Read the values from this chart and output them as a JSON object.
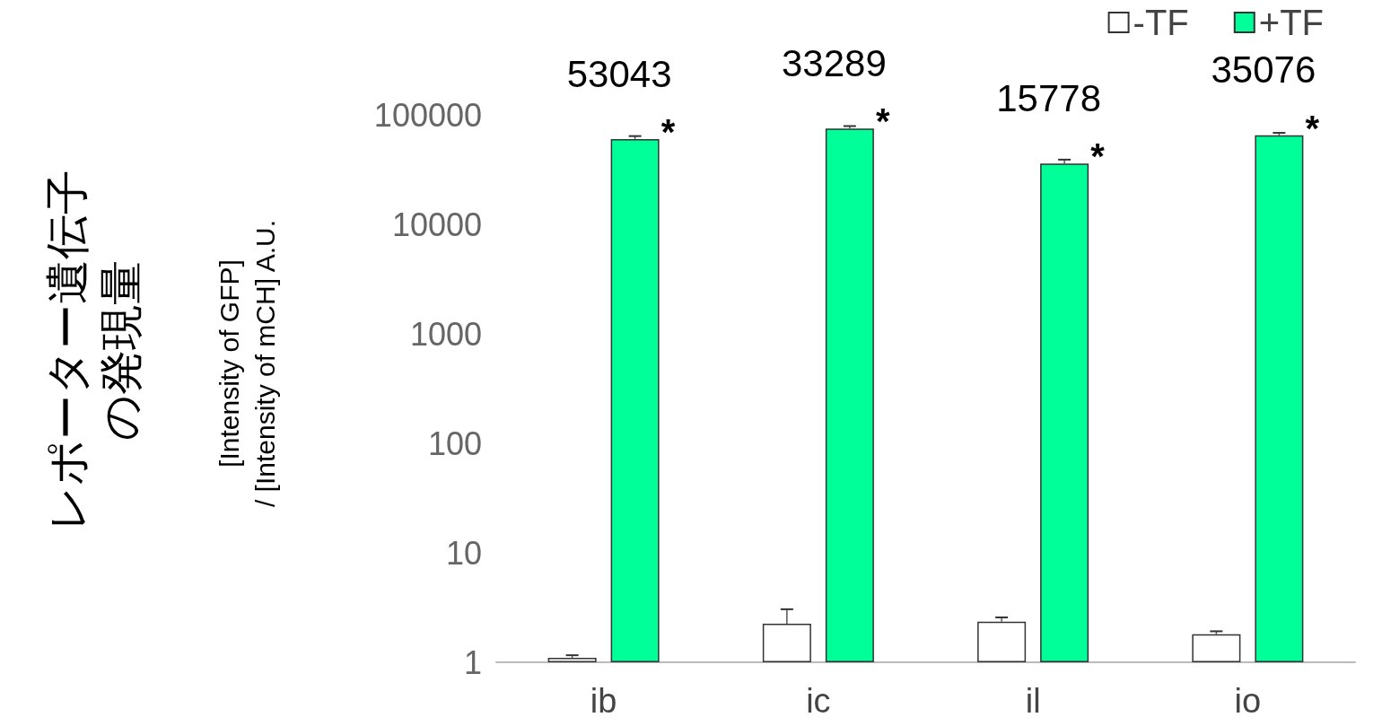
{
  "chart_data": {
    "type": "bar",
    "title": "レポーター遺伝子の発現量",
    "ylabel": "[Intensity of GFP]\n/ [Intensity of mCH] A.U.",
    "categories": [
      "ib",
      "ic",
      "il",
      "io"
    ],
    "series": [
      {
        "name": "-TF",
        "color": "#ffffff",
        "values": [
          1.1,
          2.25,
          2.35,
          1.8
        ],
        "errors": [
          0.06,
          0.8,
          0.22,
          0.12
        ]
      },
      {
        "name": "+TF",
        "color": "#00ff99",
        "values": [
          60000,
          75000,
          36000,
          65000
        ],
        "errors": [
          4000,
          4000,
          3000,
          3500
        ]
      }
    ],
    "log": true,
    "ylim": [
      1,
      100000
    ],
    "yticks": [
      1,
      10,
      100,
      1000,
      10000,
      100000
    ],
    "grid": false,
    "legend": "top right",
    "annotations": [
      "53043",
      "33289",
      "15778",
      "35076",
      "*",
      "*",
      "*",
      "*"
    ]
  }
}
